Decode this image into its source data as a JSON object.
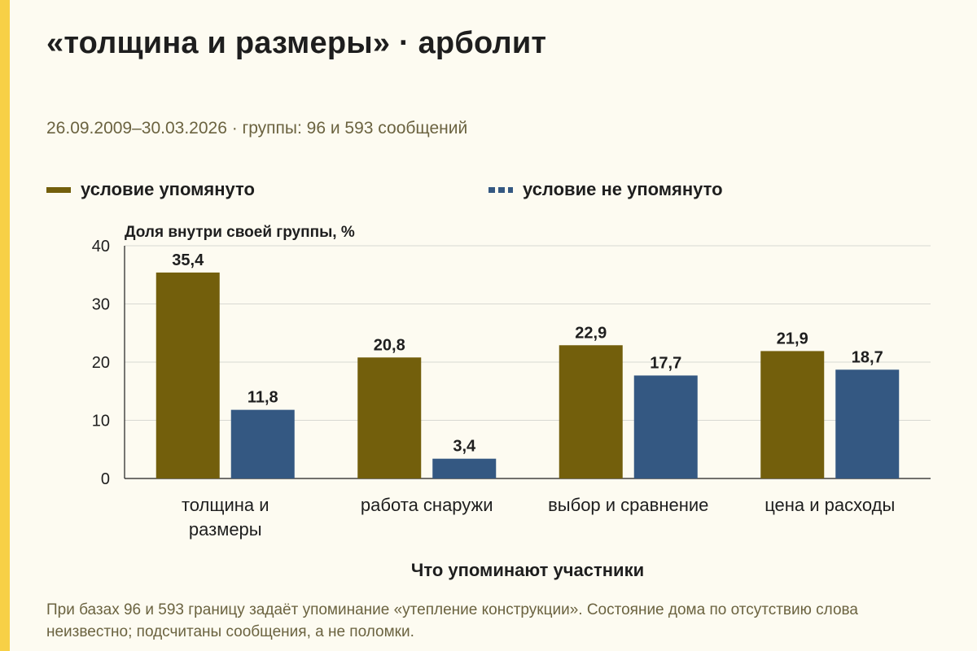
{
  "header": {
    "title": "«толщина и размеры» · арболит",
    "subtitle": "26.09.2009–30.03.2026 · группы: 96 и 593 сообщений"
  },
  "footnote": "При базах 96 и 593 границу задаёт упоминание «утепление конструкции». Состояние дома по отсутствию слова неизвестно; подсчитаны сообщения, а не поломки.",
  "chart_data": {
    "type": "bar",
    "title": "«толщина и размеры» · арболит",
    "subtitle": "26.09.2009–30.03.2026 · группы: 96 и 593 сообщений",
    "ylabel": "Доля внутри своей группы, %",
    "xlabel": "Что упоминают участники",
    "ylim": [
      0,
      40
    ],
    "yticks": [
      0,
      10,
      20,
      30,
      40
    ],
    "grid": true,
    "legend_position": "top-left",
    "categories": [
      [
        "толщина и",
        "размеры"
      ],
      [
        "работа снаружи"
      ],
      [
        "выбор и сравнение"
      ],
      [
        "цена и расходы"
      ]
    ],
    "series": [
      {
        "name": "условие упомянуто",
        "color": "#735f0c",
        "values": [
          35.4,
          20.8,
          22.9,
          21.9
        ],
        "labels": [
          "35,4",
          "20,8",
          "22,9",
          "21,9"
        ]
      },
      {
        "name": "условие не упомянуто",
        "color": "#345882",
        "values": [
          11.8,
          3.4,
          17.7,
          18.7
        ],
        "labels": [
          "11,8",
          "3,4",
          "17,7",
          "18,7"
        ]
      }
    ]
  }
}
